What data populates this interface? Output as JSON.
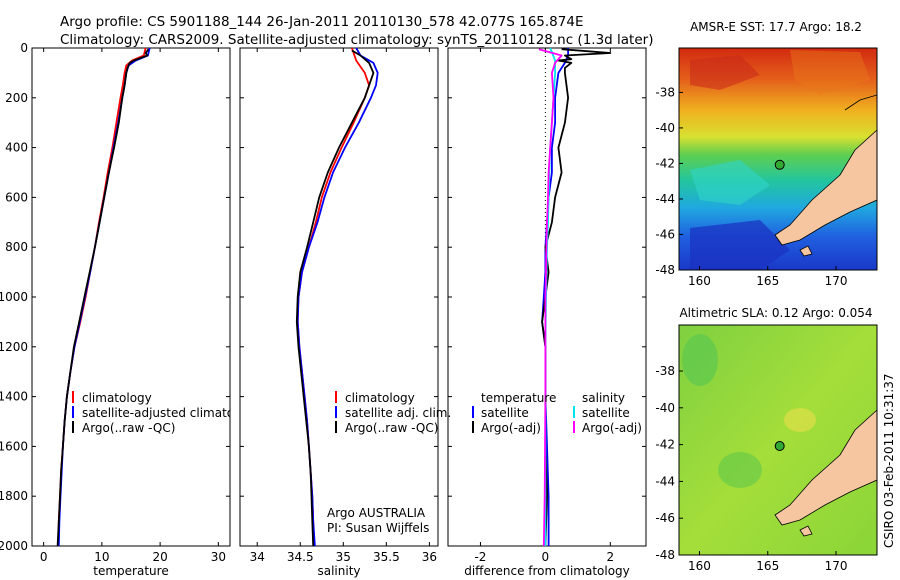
{
  "header": {
    "line1": "Argo profile: CS 5901188_144 26-Jan-2011 20110130_578 42.077S 165.874E",
    "line2": "Climatology: CARS2009. Satellite-adjusted climatology: synTS_20110128.nc (1.3d later)"
  },
  "side_label": "CSIRO 03-Feb-2011 10:31:37",
  "colors": {
    "climatology": "#ff0000",
    "satellite": "#0000ff",
    "argo": "#000000",
    "salinity_satellite": "#00e5ee",
    "salinity_argo": "#ff00ff",
    "land": "#f5c6a0",
    "marker": "#33aa33"
  },
  "chart_data": [
    {
      "type": "line",
      "title": "",
      "xlabel": "temperature",
      "ylabel": "",
      "xlim": [
        -2,
        32
      ],
      "ylim": [
        2000,
        0
      ],
      "xticks": [
        0,
        10,
        20,
        30
      ],
      "yticks": [
        0,
        200,
        400,
        600,
        800,
        1000,
        1200,
        1400,
        1600,
        1800,
        2000
      ],
      "legend": [
        "climatology",
        "satellite-adjusted climatology",
        "Argo(..raw -QC)"
      ],
      "series": [
        {
          "name": "climatology",
          "color_key": "climatology",
          "points": [
            [
              17.5,
              0
            ],
            [
              17.2,
              30
            ],
            [
              15.2,
              50
            ],
            [
              14.2,
              70
            ],
            [
              13.9,
              100
            ],
            [
              13.6,
              150
            ],
            [
              13.2,
              200
            ],
            [
              12.5,
              300
            ],
            [
              11.8,
              400
            ],
            [
              11.0,
              500
            ],
            [
              10.3,
              600
            ],
            [
              9.5,
              700
            ],
            [
              8.8,
              800
            ],
            [
              8.0,
              900
            ],
            [
              7.2,
              1000
            ],
            [
              6.3,
              1100
            ],
            [
              5.3,
              1200
            ],
            [
              4.6,
              1300
            ],
            [
              4.0,
              1400
            ],
            [
              3.6,
              1500
            ],
            [
              3.3,
              1600
            ],
            [
              3.0,
              1700
            ],
            [
              2.8,
              1800
            ],
            [
              2.6,
              1900
            ],
            [
              2.5,
              2000
            ]
          ]
        },
        {
          "name": "satellite-adjusted climatology",
          "color_key": "satellite",
          "points": [
            [
              18.2,
              0
            ],
            [
              17.9,
              30
            ],
            [
              15.8,
              50
            ],
            [
              14.6,
              70
            ],
            [
              14.2,
              100
            ],
            [
              13.9,
              150
            ],
            [
              13.5,
              200
            ],
            [
              12.8,
              300
            ],
            [
              12.0,
              400
            ],
            [
              11.2,
              500
            ],
            [
              10.4,
              600
            ],
            [
              9.6,
              700
            ],
            [
              8.8,
              800
            ],
            [
              8.0,
              900
            ],
            [
              7.1,
              1000
            ],
            [
              6.2,
              1100
            ],
            [
              5.3,
              1200
            ],
            [
              4.6,
              1300
            ],
            [
              4.0,
              1400
            ],
            [
              3.6,
              1500
            ],
            [
              3.3,
              1600
            ],
            [
              3.1,
              1700
            ],
            [
              2.9,
              1800
            ],
            [
              2.7,
              1900
            ],
            [
              2.6,
              2000
            ]
          ]
        },
        {
          "name": "Argo(..raw -QC)",
          "color_key": "argo",
          "points": [
            [
              18.0,
              5
            ],
            [
              17.5,
              20
            ],
            [
              17.8,
              30
            ],
            [
              15.5,
              50
            ],
            [
              14.8,
              60
            ],
            [
              14.4,
              80
            ],
            [
              14.2,
              100
            ],
            [
              13.9,
              150
            ],
            [
              13.5,
              200
            ],
            [
              12.9,
              300
            ],
            [
              12.1,
              400
            ],
            [
              11.2,
              500
            ],
            [
              10.4,
              600
            ],
            [
              9.6,
              700
            ],
            [
              8.8,
              800
            ],
            [
              7.9,
              900
            ],
            [
              7.0,
              1000
            ],
            [
              6.1,
              1100
            ],
            [
              5.2,
              1200
            ],
            [
              4.6,
              1300
            ],
            [
              4.0,
              1400
            ],
            [
              3.6,
              1500
            ],
            [
              3.3,
              1600
            ],
            [
              3.0,
              1700
            ],
            [
              2.8,
              1800
            ],
            [
              2.6,
              1900
            ],
            [
              2.4,
              2000
            ]
          ]
        }
      ]
    },
    {
      "type": "line",
      "title": "",
      "xlabel": "salinity",
      "ylabel": "",
      "xlim": [
        33.8,
        36.1
      ],
      "ylim": [
        2000,
        0
      ],
      "xticks": [
        34,
        34.5,
        35,
        35.5,
        36
      ],
      "xtick_labels": [
        "34",
        "34.5",
        "35",
        "35.5",
        "36"
      ],
      "yticks": [
        0,
        200,
        400,
        600,
        800,
        1000,
        1200,
        1400,
        1600,
        1800,
        2000
      ],
      "legend": [
        "climatology",
        "satellite adj. clim.",
        "Argo(..raw -QC)"
      ],
      "annotations": [
        "Argo AUSTRALIA",
        "PI: Susan Wijffels"
      ],
      "series": [
        {
          "name": "climatology",
          "color_key": "climatology",
          "points": [
            [
              35.1,
              0
            ],
            [
              35.15,
              50
            ],
            [
              35.25,
              100
            ],
            [
              35.3,
              150
            ],
            [
              35.25,
              200
            ],
            [
              35.12,
              300
            ],
            [
              34.98,
              400
            ],
            [
              34.85,
              500
            ],
            [
              34.75,
              600
            ],
            [
              34.68,
              700
            ],
            [
              34.6,
              800
            ],
            [
              34.52,
              900
            ],
            [
              34.48,
              1000
            ],
            [
              34.47,
              1100
            ],
            [
              34.49,
              1200
            ],
            [
              34.52,
              1300
            ],
            [
              34.55,
              1400
            ],
            [
              34.58,
              1500
            ],
            [
              34.6,
              1600
            ],
            [
              34.62,
              1700
            ],
            [
              34.64,
              1800
            ],
            [
              34.65,
              1900
            ],
            [
              34.66,
              2000
            ]
          ]
        },
        {
          "name": "satellite adj. clim.",
          "color_key": "satellite",
          "points": [
            [
              35.15,
              0
            ],
            [
              35.2,
              30
            ],
            [
              35.35,
              60
            ],
            [
              35.4,
              100
            ],
            [
              35.38,
              150
            ],
            [
              35.32,
              200
            ],
            [
              35.18,
              300
            ],
            [
              35.02,
              400
            ],
            [
              34.88,
              500
            ],
            [
              34.78,
              600
            ],
            [
              34.7,
              700
            ],
            [
              34.6,
              800
            ],
            [
              34.52,
              900
            ],
            [
              34.48,
              1000
            ],
            [
              34.47,
              1100
            ],
            [
              34.49,
              1200
            ],
            [
              34.52,
              1300
            ],
            [
              34.55,
              1400
            ],
            [
              34.58,
              1500
            ],
            [
              34.6,
              1600
            ],
            [
              34.62,
              1700
            ],
            [
              34.64,
              1800
            ],
            [
              34.65,
              1900
            ],
            [
              34.67,
              2000
            ]
          ]
        },
        {
          "name": "Argo(..raw -QC)",
          "color_key": "argo",
          "points": [
            [
              35.1,
              10
            ],
            [
              35.2,
              30
            ],
            [
              35.3,
              60
            ],
            [
              35.35,
              100
            ],
            [
              35.3,
              150
            ],
            [
              35.25,
              200
            ],
            [
              35.1,
              300
            ],
            [
              34.95,
              400
            ],
            [
              34.82,
              500
            ],
            [
              34.72,
              600
            ],
            [
              34.65,
              700
            ],
            [
              34.58,
              800
            ],
            [
              34.5,
              900
            ],
            [
              34.47,
              1000
            ],
            [
              34.46,
              1100
            ],
            [
              34.48,
              1200
            ],
            [
              34.51,
              1300
            ],
            [
              34.54,
              1400
            ],
            [
              34.57,
              1500
            ],
            [
              34.6,
              1600
            ],
            [
              34.62,
              1700
            ],
            [
              34.63,
              1800
            ],
            [
              34.64,
              1900
            ],
            [
              34.65,
              2000
            ]
          ]
        }
      ]
    },
    {
      "type": "line",
      "title": "",
      "xlabel": "difference from climatology",
      "ylabel": "",
      "xlim": [
        -3,
        3.1
      ],
      "ylim": [
        2000,
        0
      ],
      "xticks": [
        -2,
        0,
        2
      ],
      "yticks": [
        0,
        200,
        400,
        600,
        800,
        1000,
        1200,
        1400,
        1600,
        1800,
        2000
      ],
      "legend_headers": [
        "temperature",
        "salinity"
      ],
      "legend": [
        "satellite",
        "Argo(-adj)",
        "satellite",
        "Argo(-adj)"
      ],
      "series": [
        {
          "name": "temperature satellite",
          "color_key": "satellite",
          "points": [
            [
              0.7,
              0
            ],
            [
              0.7,
              30
            ],
            [
              0.6,
              60
            ],
            [
              0.4,
              100
            ],
            [
              0.3,
              200
            ],
            [
              0.3,
              300
            ],
            [
              0.2,
              400
            ],
            [
              0.2,
              500
            ],
            [
              0.1,
              600
            ],
            [
              0.05,
              700
            ],
            [
              0.0,
              800
            ],
            [
              0.0,
              900
            ],
            [
              -0.05,
              1000
            ],
            [
              -0.1,
              1100
            ],
            [
              0.0,
              1200
            ],
            [
              0.0,
              1400
            ],
            [
              0.05,
              1600
            ],
            [
              0.1,
              1800
            ],
            [
              0.1,
              2000
            ]
          ]
        },
        {
          "name": "temperature Argo(-adj)",
          "color_key": "argo",
          "points": [
            [
              0.5,
              5
            ],
            [
              2.0,
              20
            ],
            [
              0.6,
              30
            ],
            [
              0.8,
              45
            ],
            [
              0.4,
              50
            ],
            [
              0.8,
              60
            ],
            [
              0.6,
              80
            ],
            [
              0.6,
              100
            ],
            [
              0.7,
              200
            ],
            [
              0.6,
              300
            ],
            [
              0.4,
              400
            ],
            [
              0.5,
              500
            ],
            [
              0.3,
              600
            ],
            [
              0.2,
              700
            ],
            [
              0.0,
              800
            ],
            [
              0.1,
              900
            ],
            [
              0.0,
              1000
            ],
            [
              -0.1,
              1100
            ],
            [
              0.0,
              1200
            ],
            [
              0.0,
              1400
            ],
            [
              0.0,
              1600
            ],
            [
              0.05,
              1800
            ],
            [
              0.0,
              2000
            ]
          ]
        },
        {
          "name": "salinity satellite",
          "color_key": "salinity_satellite",
          "points": [
            [
              0.15,
              0
            ],
            [
              0.3,
              50
            ],
            [
              0.3,
              100
            ],
            [
              0.25,
              200
            ],
            [
              0.2,
              300
            ],
            [
              0.15,
              400
            ],
            [
              0.12,
              500
            ],
            [
              0.1,
              600
            ],
            [
              0.08,
              700
            ],
            [
              0.05,
              800
            ],
            [
              0.02,
              1000
            ],
            [
              0.0,
              1200
            ],
            [
              0.0,
              1400
            ],
            [
              0.0,
              1600
            ],
            [
              0.0,
              1800
            ],
            [
              0.0,
              2000
            ]
          ]
        },
        {
          "name": "salinity Argo(-adj)",
          "color_key": "salinity_argo",
          "points": [
            [
              -0.2,
              5
            ],
            [
              0.5,
              30
            ],
            [
              0.3,
              60
            ],
            [
              0.2,
              100
            ],
            [
              0.25,
              200
            ],
            [
              0.2,
              300
            ],
            [
              0.15,
              400
            ],
            [
              0.1,
              500
            ],
            [
              0.08,
              600
            ],
            [
              0.05,
              700
            ],
            [
              0.03,
              800
            ],
            [
              0.02,
              900
            ],
            [
              0.0,
              1000
            ],
            [
              0.0,
              1400
            ],
            [
              -0.02,
              1800
            ],
            [
              -0.05,
              2000
            ]
          ]
        }
      ]
    },
    {
      "type": "heatmap",
      "title": "AMSR-E SST: 17.7 Argo: 18.2",
      "xlim": [
        158.5,
        173
      ],
      "ylim": [
        -48,
        -35.5
      ],
      "xticks": [
        160,
        165,
        170
      ],
      "yticks": [
        -38,
        -40,
        -42,
        -44,
        -46,
        -48
      ],
      "float_position": {
        "lon": 165.874,
        "lat": -42.077
      }
    },
    {
      "type": "heatmap",
      "title": "Altimetric SLA: 0.12 Argo: 0.054",
      "xlim": [
        158.5,
        173
      ],
      "ylim": [
        -48,
        -35.5
      ],
      "xticks": [
        160,
        165,
        170
      ],
      "yticks": [
        -38,
        -40,
        -42,
        -44,
        -46,
        -48
      ],
      "float_position": {
        "lon": 165.874,
        "lat": -42.077
      }
    }
  ]
}
